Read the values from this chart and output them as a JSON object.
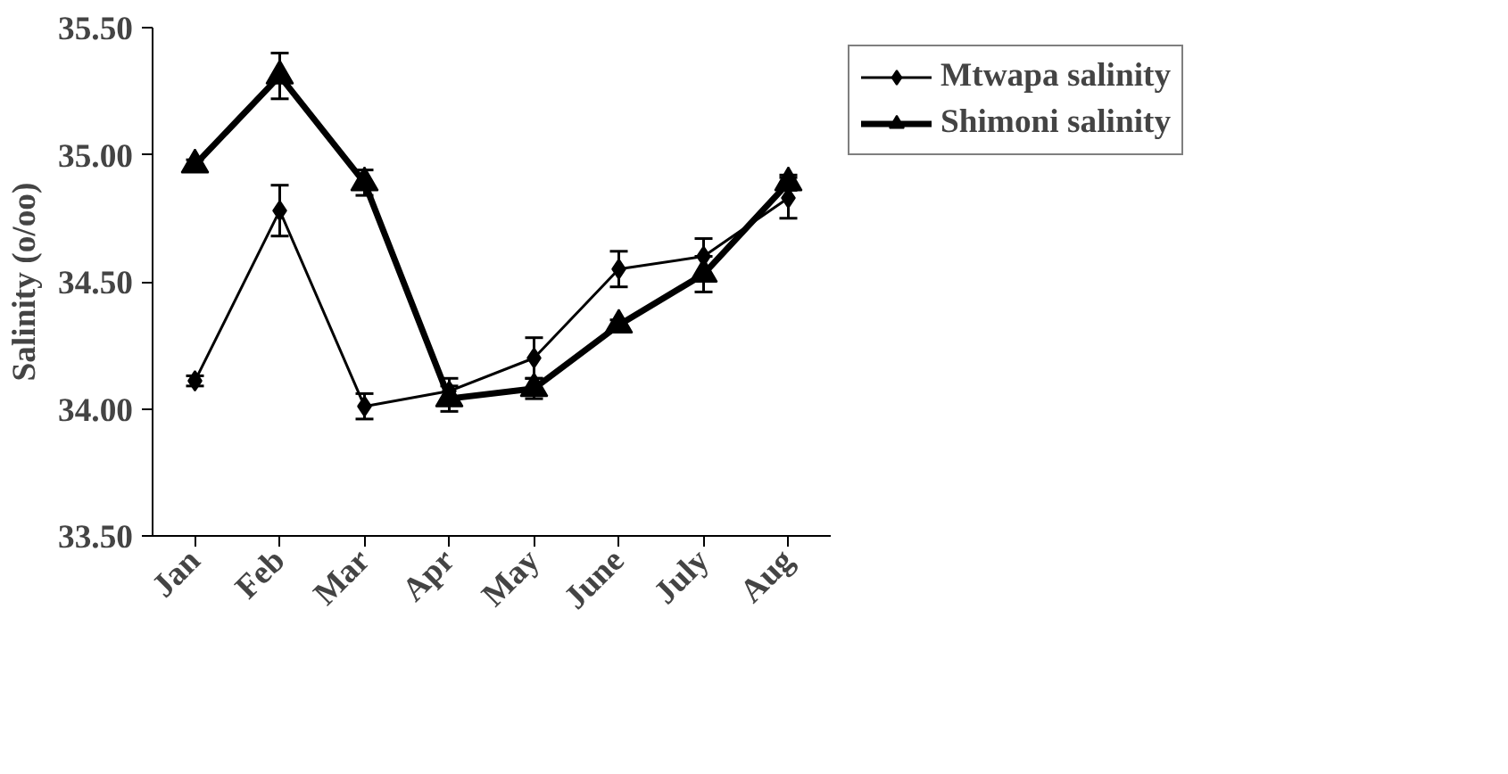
{
  "chart_data": {
    "type": "line",
    "ylabel": "Salinity (o/oo)",
    "categories": [
      "Jan",
      "Feb",
      "Mar",
      "Apr",
      "May",
      "June",
      "July",
      "Aug"
    ],
    "ylim": [
      33.5,
      35.5
    ],
    "yticks": [
      {
        "value": 33.5,
        "label": "33.50"
      },
      {
        "value": 34.0,
        "label": "34.00"
      },
      {
        "value": 34.5,
        "label": "34.50"
      },
      {
        "value": 35.0,
        "label": "35.00"
      },
      {
        "value": 35.5,
        "label": "35.50"
      }
    ],
    "grid": false,
    "legend": "top right",
    "series": [
      {
        "name": "Mtwapa salinity",
        "color": "#000000",
        "marker": "diamond",
        "values": [
          34.11,
          34.78,
          34.01,
          34.07,
          34.2,
          34.55,
          34.6,
          34.83
        ],
        "errors": [
          0.02,
          0.1,
          0.05,
          0.05,
          0.08,
          0.07,
          0.07,
          0.08
        ]
      },
      {
        "name": "Shimoni salinity",
        "color": "#000000",
        "marker": "triangle",
        "values": [
          34.96,
          35.31,
          34.89,
          34.04,
          34.08,
          34.33,
          34.53,
          34.89
        ],
        "errors": [
          0.02,
          0.09,
          0.05,
          0.05,
          0.04,
          0.02,
          0.07,
          0.03
        ]
      }
    ]
  }
}
